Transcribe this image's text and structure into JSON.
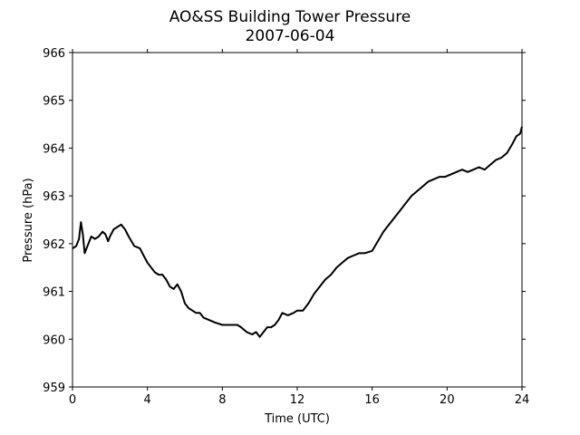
{
  "chart_data": {
    "type": "line",
    "title": "AO&SS Building Tower Pressure",
    "subtitle": "2007-06-04",
    "xlabel": "Time (UTC)",
    "ylabel": "Pressure (hPa)",
    "xlim": [
      0,
      24
    ],
    "ylim": [
      959,
      966
    ],
    "xticks": [
      0,
      4,
      8,
      12,
      16,
      20,
      24
    ],
    "yticks": [
      959,
      960,
      961,
      962,
      963,
      964,
      965,
      966
    ],
    "grid": false,
    "series_color": "#000000",
    "series": [
      {
        "x": [
          0.0,
          0.2,
          0.35,
          0.45,
          0.55,
          0.65,
          0.8,
          1.0,
          1.2,
          1.4,
          1.6,
          1.75,
          1.9,
          2.0,
          2.2,
          2.4,
          2.6,
          2.8,
          3.0,
          3.3,
          3.6,
          3.8,
          4.0,
          4.2,
          4.4,
          4.6,
          4.8,
          5.0,
          5.2,
          5.4,
          5.6,
          5.8,
          6.0,
          6.2,
          6.4,
          6.6,
          6.8,
          7.0,
          7.3,
          7.6,
          8.0,
          8.4,
          8.8,
          9.0,
          9.3,
          9.6,
          9.8,
          10.0,
          10.2,
          10.4,
          10.6,
          10.8,
          11.0,
          11.2,
          11.5,
          11.8,
          12.0,
          12.3,
          12.6,
          12.9,
          13.2,
          13.5,
          13.8,
          14.1,
          14.4,
          14.7,
          15.0,
          15.3,
          15.6,
          16.0,
          16.3,
          16.6,
          16.9,
          17.2,
          17.5,
          17.8,
          18.1,
          18.4,
          18.7,
          19.0,
          19.3,
          19.6,
          19.9,
          20.2,
          20.5,
          20.8,
          21.1,
          21.4,
          21.7,
          22.0,
          22.3,
          22.6,
          22.9,
          23.2,
          23.5,
          23.7,
          23.9,
          24.0
        ],
        "y": [
          961.9,
          961.95,
          962.1,
          962.45,
          962.2,
          961.8,
          961.95,
          962.15,
          962.1,
          962.15,
          962.25,
          962.2,
          962.05,
          962.15,
          962.3,
          962.35,
          962.4,
          962.3,
          962.15,
          961.95,
          961.9,
          961.75,
          961.6,
          961.5,
          961.4,
          961.35,
          961.35,
          961.25,
          961.1,
          961.05,
          961.15,
          961.0,
          960.75,
          960.65,
          960.6,
          960.55,
          960.55,
          960.45,
          960.4,
          960.35,
          960.3,
          960.3,
          960.3,
          960.25,
          960.15,
          960.1,
          960.15,
          960.05,
          960.15,
          960.25,
          960.25,
          960.3,
          960.4,
          960.55,
          960.5,
          960.55,
          960.6,
          960.6,
          960.75,
          960.95,
          961.1,
          961.25,
          961.35,
          961.5,
          961.6,
          961.7,
          961.75,
          961.8,
          961.8,
          961.85,
          962.05,
          962.25,
          962.4,
          962.55,
          962.7,
          962.85,
          963.0,
          963.1,
          963.2,
          963.3,
          963.35,
          963.4,
          963.4,
          963.45,
          963.5,
          963.55,
          963.5,
          963.55,
          963.6,
          963.55,
          963.65,
          963.75,
          963.8,
          963.9,
          964.1,
          964.25,
          964.3,
          964.45
        ]
      }
    ]
  }
}
